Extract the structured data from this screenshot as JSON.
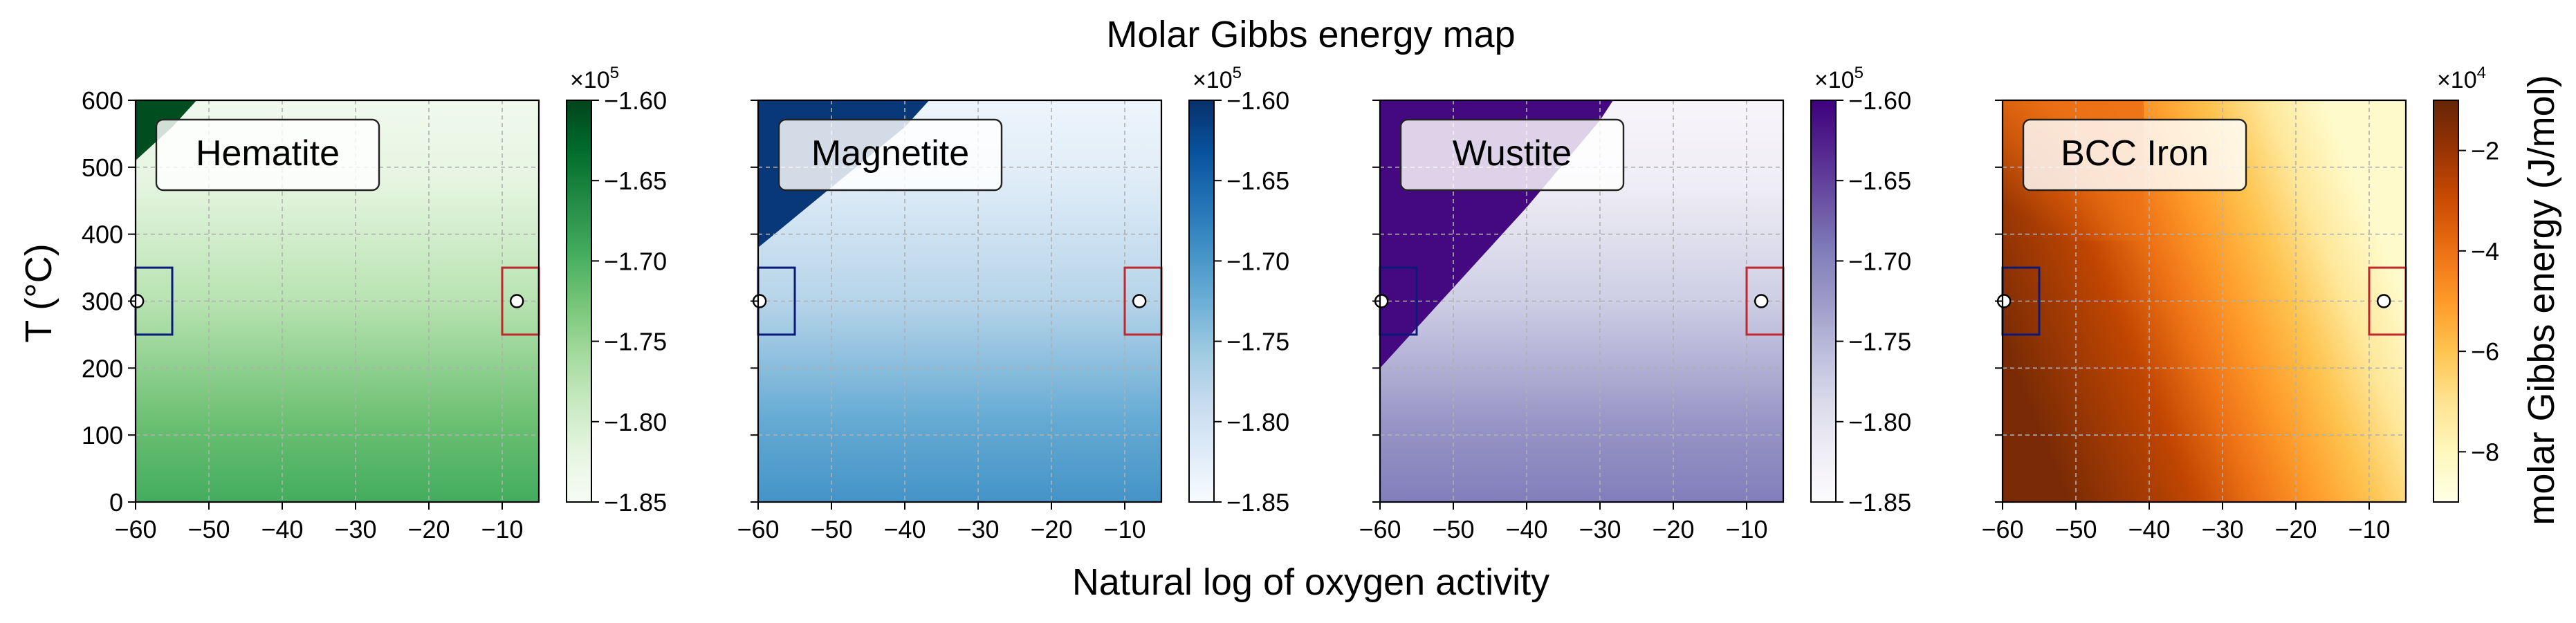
{
  "figure": {
    "title": "Molar Gibbs energy map",
    "xlabel": "Natural log of oxygen activity",
    "ylabel": "T ($^\\circ$C)",
    "ylabel_display": "T (°C)",
    "colorbar_label": "molar Gibbs energy (J/mol)"
  },
  "chart_data": [
    {
      "type": "heatmap",
      "title": "Hematite",
      "colormap": "Greens",
      "colors": [
        "#f7fcf5",
        "#e5f5e0",
        "#c7e9c0",
        "#a1d99b",
        "#74c476",
        "#41ab5d",
        "#238b45",
        "#006d2c",
        "#00441b"
      ],
      "x_range": [
        -60,
        -5
      ],
      "y_range": [
        0,
        600
      ],
      "xticks": [
        -60,
        -50,
        -40,
        -30,
        -20,
        -10
      ],
      "yticks": [
        0,
        100,
        200,
        300,
        400,
        500,
        600
      ],
      "colorbar": {
        "range": [
          -185000,
          -160000
        ],
        "ticks": [
          "−1.85",
          "−1.80",
          "−1.75",
          "−1.70",
          "−1.65",
          "−1.60"
        ],
        "multiplier": "×10",
        "exponent": "5"
      },
      "boundary": [
        [
          -60,
          510
        ],
        [
          -55,
          560
        ],
        [
          -50,
          620
        ]
      ],
      "markers": [
        {
          "x": -59.8,
          "y": 300
        },
        {
          "x": -8,
          "y": 300
        }
      ],
      "boxes": [
        {
          "x": [
            -60,
            -55
          ],
          "y": [
            250,
            350
          ],
          "color": "#0b1a7a"
        },
        {
          "x": [
            -10,
            -5
          ],
          "y": [
            250,
            350
          ],
          "color": "#c0282d"
        }
      ],
      "grid": true
    },
    {
      "type": "heatmap",
      "title": "Magnetite",
      "colormap": "Blues",
      "colors": [
        "#f7fbff",
        "#deebf7",
        "#c6dbef",
        "#9ecae1",
        "#6baed6",
        "#4292c6",
        "#2171b5",
        "#08519c",
        "#08306b"
      ],
      "x_range": [
        -60,
        -5
      ],
      "y_range": [
        0,
        600
      ],
      "xticks": [
        -60,
        -50,
        -40,
        -30,
        -20,
        -10
      ],
      "yticks": [
        0,
        100,
        200,
        300,
        400,
        500,
        600
      ],
      "colorbar": {
        "range": [
          -185000,
          -160000
        ],
        "ticks": [
          "−1.85",
          "−1.80",
          "−1.75",
          "−1.70",
          "−1.65",
          "−1.60"
        ],
        "multiplier": "×10",
        "exponent": "5"
      },
      "boundary": [
        [
          -60,
          380
        ],
        [
          -50,
          470
        ],
        [
          -40,
          560
        ],
        [
          -35,
          620
        ]
      ],
      "markers": [
        {
          "x": -59.8,
          "y": 300
        },
        {
          "x": -8,
          "y": 300
        }
      ],
      "boxes": [
        {
          "x": [
            -60,
            -55
          ],
          "y": [
            250,
            350
          ],
          "color": "#0b1a7a"
        },
        {
          "x": [
            -10,
            -5
          ],
          "y": [
            250,
            350
          ],
          "color": "#c0282d"
        }
      ],
      "grid": true
    },
    {
      "type": "heatmap",
      "title": "Wustite",
      "colormap": "Purples",
      "colors": [
        "#fcfbfd",
        "#efedf5",
        "#dadaeb",
        "#bcbddc",
        "#9e9ac8",
        "#807dba",
        "#6a51a3",
        "#54278f",
        "#3f007d"
      ],
      "x_range": [
        -60,
        -5
      ],
      "y_range": [
        0,
        600
      ],
      "xticks": [
        -60,
        -50,
        -40,
        -30,
        -20,
        -10
      ],
      "yticks": [
        0,
        100,
        200,
        300,
        400,
        500,
        600
      ],
      "colorbar": {
        "range": [
          -185000,
          -160000
        ],
        "ticks": [
          "−1.85",
          "−1.80",
          "−1.75",
          "−1.70",
          "−1.65",
          "−1.60"
        ],
        "multiplier": "×10",
        "exponent": "5"
      },
      "boundary": [
        [
          -60,
          200
        ],
        [
          -50,
          320
        ],
        [
          -40,
          440
        ],
        [
          -30,
          570
        ],
        [
          -27,
          620
        ]
      ],
      "markers": [
        {
          "x": -59.8,
          "y": 300
        },
        {
          "x": -8,
          "y": 300
        }
      ],
      "boxes": [
        {
          "x": [
            -60,
            -55
          ],
          "y": [
            250,
            350
          ],
          "color": "#0b1a7a"
        },
        {
          "x": [
            -10,
            -5
          ],
          "y": [
            250,
            350
          ],
          "color": "#c0282d"
        }
      ],
      "grid": true
    },
    {
      "type": "heatmap",
      "title": "BCC Iron",
      "colormap": "YlOrBr",
      "colors": [
        "#ffffe5",
        "#fff7bc",
        "#fee391",
        "#fec44f",
        "#fe9929",
        "#ec7014",
        "#cc4c02",
        "#993404",
        "#662506"
      ],
      "x_range": [
        -60,
        -5
      ],
      "y_range": [
        0,
        600
      ],
      "xticks": [
        -60,
        -50,
        -40,
        -30,
        -20,
        -10
      ],
      "yticks": [
        0,
        100,
        200,
        300,
        400,
        500,
        600
      ],
      "colorbar": {
        "range": [
          -90000,
          -10000
        ],
        "ticks": [
          "−8",
          "−6",
          "−4",
          "−2"
        ],
        "tick_values": [
          -80000,
          -60000,
          -40000,
          -20000
        ],
        "multiplier": "×10",
        "exponent": "4"
      },
      "markers": [
        {
          "x": -59.8,
          "y": 300
        },
        {
          "x": -8,
          "y": 300
        }
      ],
      "boxes": [
        {
          "x": [
            -60,
            -55
          ],
          "y": [
            250,
            350
          ],
          "color": "#0b1a7a"
        },
        {
          "x": [
            -10,
            -5
          ],
          "y": [
            250,
            350
          ],
          "color": "#c0282d"
        }
      ],
      "grid": true
    }
  ]
}
